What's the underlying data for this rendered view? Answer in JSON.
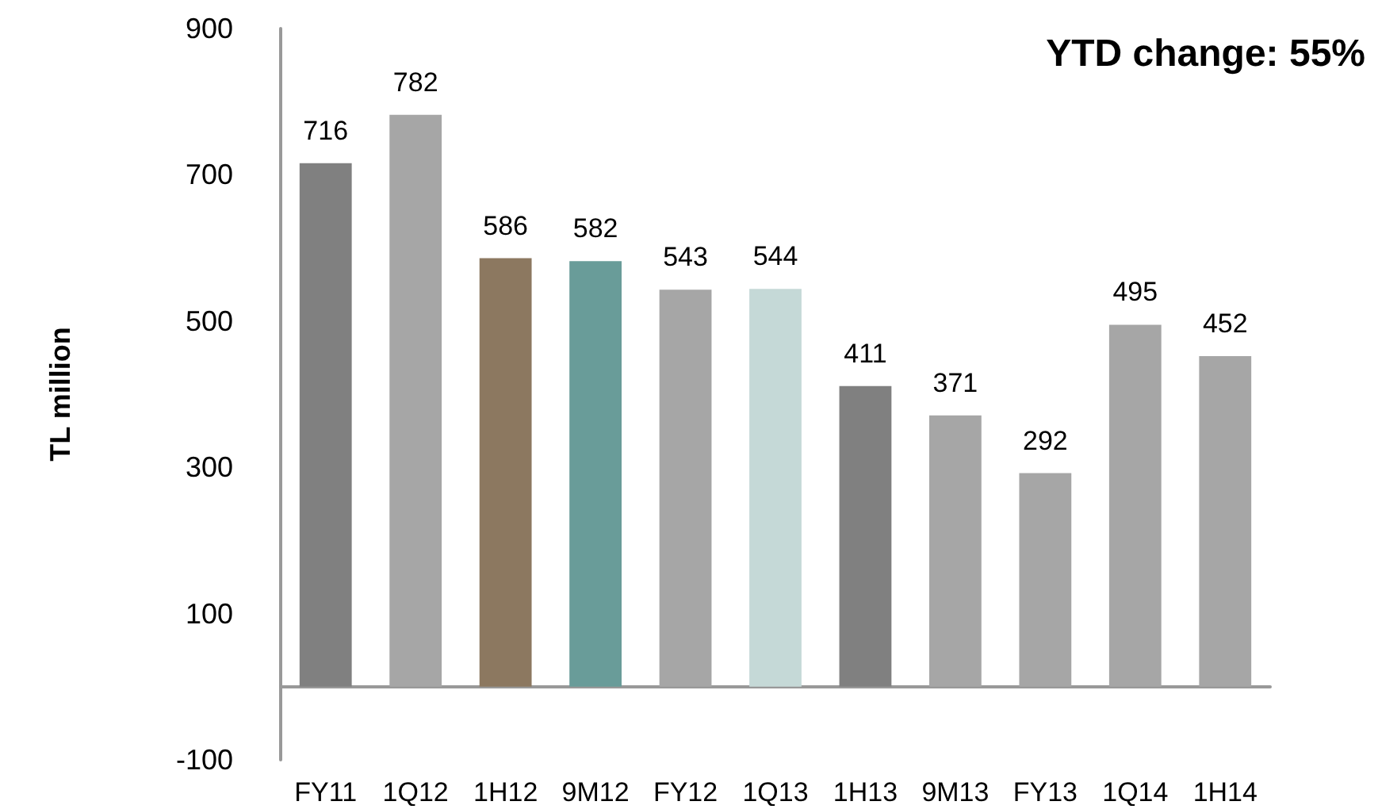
{
  "chart_data": {
    "type": "bar",
    "ylabel": "TL million",
    "annotations": [
      "YTD change: 55%"
    ],
    "categories": [
      "FY11",
      "1Q12",
      "1H12",
      "9M12",
      "FY12",
      "1Q13",
      "1H13",
      "9M13",
      "FY13",
      "1Q14",
      "1H14"
    ],
    "values": [
      716,
      782,
      586,
      582,
      543,
      544,
      411,
      371,
      292,
      495,
      452
    ],
    "colors": [
      "#808080",
      "#a6a6a6",
      "#8c7860",
      "#699c99",
      "#a6a6a6",
      "#c5d9d7",
      "#808080",
      "#a6a6a6",
      "#a6a6a6",
      "#a6a6a6",
      "#a6a6a6"
    ],
    "ylim": [
      -100,
      900
    ],
    "yticks": [
      -100,
      100,
      300,
      500,
      700,
      900
    ],
    "data_labels": true
  }
}
